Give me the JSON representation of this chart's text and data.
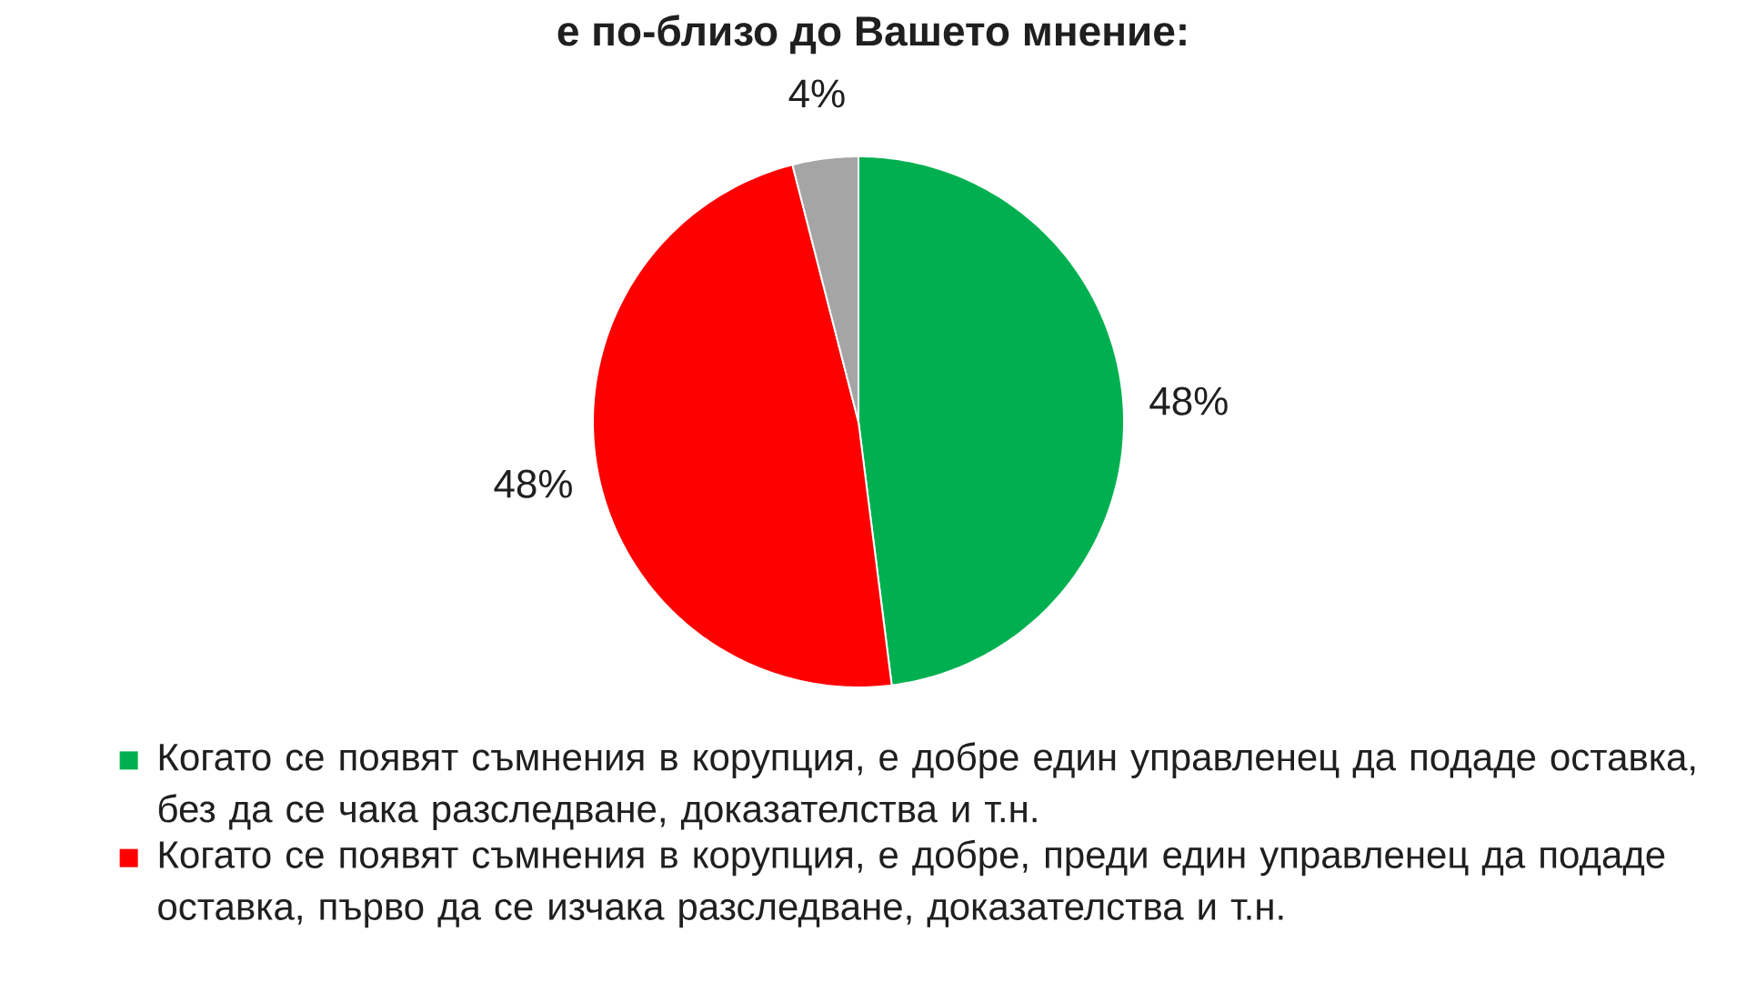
{
  "chart_data": {
    "type": "pie",
    "title": "е по-близо до Вашето мнение:",
    "categories": [
      "Когато се появят съмнения в корупция, е добре един управленец да подаде оставка, без да се чака разследване, доказателства и т.н.",
      "Когато се появят съмнения в корупция, е добре, преди един управленец да подаде оставка, първо да се изчака разследване, доказателства и т.н.",
      null
    ],
    "values": [
      48,
      48,
      4
    ],
    "colors": [
      "#00b050",
      "#ff0000",
      "#a5a5a5"
    ],
    "value_labels": [
      "48%",
      "48%",
      "4%"
    ],
    "legend": "bottom"
  }
}
